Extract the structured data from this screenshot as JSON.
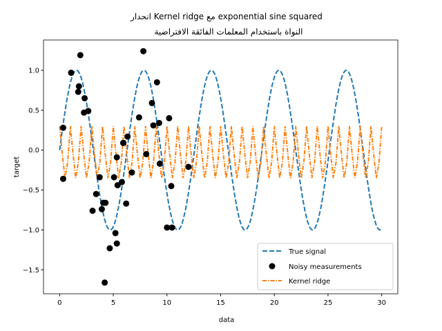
{
  "chart_data": {
    "type": "line",
    "title_line1": "انحدار Kernel ridge مع  exponential sine squared",
    "title_line2": "النواة باستخدام المعلمات الفائقة الافتراضية",
    "xlabel": "data",
    "ylabel": "target",
    "xlim": [
      -1.5,
      31.5
    ],
    "ylim": [
      -1.8,
      1.38
    ],
    "xticks": [
      0,
      5,
      10,
      15,
      20,
      25,
      30
    ],
    "xtick_labels": [
      "0",
      "5",
      "10",
      "15",
      "20",
      "25",
      "30"
    ],
    "yticks": [
      -1.5,
      -1.0,
      -0.5,
      0.0,
      0.5,
      1.0
    ],
    "ytick_labels": [
      "−1.5",
      "−1.0",
      "−0.5",
      "0.0",
      "0.5",
      "1.0"
    ],
    "grid": false,
    "legend_placement": "lower right",
    "series": [
      {
        "name": "True signal",
        "kind": "line",
        "style": "dashed",
        "color": "#1f77b4",
        "function": "sin(x)",
        "x_range": [
          0,
          30
        ]
      },
      {
        "name": "Noisy measurements",
        "kind": "scatter",
        "color": "#000000",
        "x": [
          0.33,
          0.33,
          1.07,
          1.93,
          1.8,
          1.73,
          2.33,
          2.27,
          2.67,
          3.07,
          3.4,
          3.73,
          3.93,
          4.07,
          4.27,
          4.2,
          4.67,
          5.2,
          5.33,
          5.07,
          5.33,
          5.4,
          5.8,
          5.93,
          5.93,
          6.33,
          6.2,
          6.73,
          7.4,
          7.8,
          8.07,
          8.6,
          9.07,
          8.73,
          9.27,
          9.33,
          10.2,
          10.4,
          10.0,
          10.47,
          12.0
        ],
        "y": [
          0.28,
          -0.36,
          0.97,
          1.19,
          0.8,
          0.73,
          0.65,
          0.47,
          0.49,
          -0.76,
          -0.55,
          -0.34,
          -0.74,
          -0.66,
          -0.66,
          -1.66,
          -1.23,
          -1.04,
          -1.17,
          -0.34,
          -0.09,
          -0.44,
          -0.4,
          0.09,
          0.09,
          0.17,
          -0.67,
          -0.28,
          0.41,
          1.24,
          -0.05,
          0.59,
          0.85,
          0.31,
          0.34,
          -0.17,
          0.4,
          -0.45,
          -0.97,
          -0.97,
          -0.21
        ]
      },
      {
        "name": "Kernel ridge",
        "kind": "line",
        "style": "dashdot",
        "color": "#ff7f0e",
        "x_step": 0.25,
        "x_start": 0,
        "y_period_pattern": [
          0.3,
          -0.05,
          -0.35,
          -0.15
        ],
        "x_end": 30
      }
    ]
  }
}
